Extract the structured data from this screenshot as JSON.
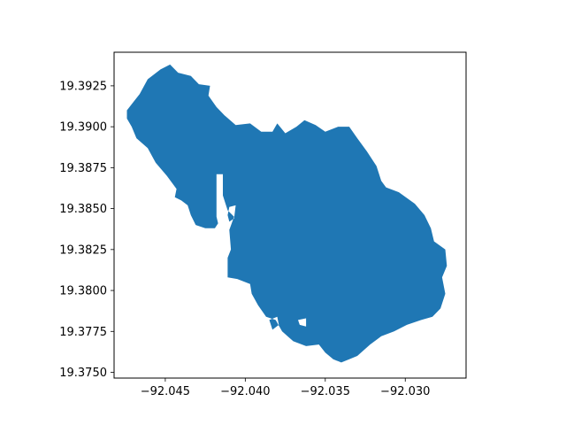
{
  "chart_data": {
    "type": "map",
    "title": "",
    "xlabel": "",
    "ylabel": "",
    "xlim": [
      -92.0482,
      -92.0262
    ],
    "ylim": [
      19.37465,
      19.39455
    ],
    "x_ticks": [
      {
        "value": -92.045,
        "label": "−92.045"
      },
      {
        "value": -92.04,
        "label": "−92.040"
      },
      {
        "value": -92.035,
        "label": "−92.035"
      },
      {
        "value": -92.03,
        "label": "−92.030"
      }
    ],
    "y_ticks": [
      {
        "value": 19.375,
        "label": "19.3750"
      },
      {
        "value": 19.3775,
        "label": "19.3775"
      },
      {
        "value": 19.38,
        "label": "19.3800"
      },
      {
        "value": 19.3825,
        "label": "19.3825"
      },
      {
        "value": 19.385,
        "label": "19.3850"
      },
      {
        "value": 19.3875,
        "label": "19.3875"
      },
      {
        "value": 19.39,
        "label": "19.3900"
      },
      {
        "value": 19.3925,
        "label": "19.3925"
      }
    ],
    "fill_color": "#1f77b4",
    "grid": false,
    "polygon": [
      [
        -92.0474,
        19.391
      ],
      [
        -92.047,
        19.3915
      ],
      [
        -92.0466,
        19.392
      ],
      [
        -92.0461,
        19.3929
      ],
      [
        -92.0457,
        19.3932
      ],
      [
        -92.0453,
        19.3935
      ],
      [
        -92.0447,
        19.3938
      ],
      [
        -92.0442,
        19.3933
      ],
      [
        -92.0434,
        19.3931
      ],
      [
        -92.0429,
        19.3926
      ],
      [
        -92.0422,
        19.3925
      ],
      [
        -92.0423,
        19.3919
      ],
      [
        -92.0418,
        19.3912
      ],
      [
        -92.0413,
        19.3907
      ],
      [
        -92.0406,
        19.3901
      ],
      [
        -92.0397,
        19.3902
      ],
      [
        -92.039,
        19.3897
      ],
      [
        -92.0383,
        19.3897
      ],
      [
        -92.038,
        19.3902
      ],
      [
        -92.0375,
        19.3896
      ],
      [
        -92.0368,
        19.39
      ],
      [
        -92.0363,
        19.3904
      ],
      [
        -92.0356,
        19.3901
      ],
      [
        -92.035,
        19.3897
      ],
      [
        -92.0342,
        19.39
      ],
      [
        -92.0335,
        19.39
      ],
      [
        -92.033,
        19.3893
      ],
      [
        -92.0324,
        19.3885
      ],
      [
        -92.0318,
        19.3876
      ],
      [
        -92.0315,
        19.3867
      ],
      [
        -92.0312,
        19.3863
      ],
      [
        -92.0304,
        19.386
      ],
      [
        -92.0294,
        19.3853
      ],
      [
        -92.0288,
        19.3846
      ],
      [
        -92.0284,
        19.3838
      ],
      [
        -92.0282,
        19.383
      ],
      [
        -92.0275,
        19.3825
      ],
      [
        -92.0274,
        19.3815
      ],
      [
        -92.0277,
        19.3808
      ],
      [
        -92.0275,
        19.3798
      ],
      [
        -92.0278,
        19.3789
      ],
      [
        -92.0283,
        19.3784
      ],
      [
        -92.029,
        19.3782
      ],
      [
        -92.0299,
        19.3779
      ],
      [
        -92.0307,
        19.3775
      ],
      [
        -92.0315,
        19.3772
      ],
      [
        -92.0322,
        19.3767
      ],
      [
        -92.033,
        19.376
      ],
      [
        -92.0335,
        19.3758
      ],
      [
        -92.034,
        19.3756
      ],
      [
        -92.0345,
        19.3758
      ],
      [
        -92.035,
        19.3762
      ],
      [
        -92.0354,
        19.3767
      ],
      [
        -92.0362,
        19.3766
      ],
      [
        -92.037,
        19.3769
      ],
      [
        -92.0377,
        19.3775
      ],
      [
        -92.0381,
        19.3782
      ],
      [
        -92.0387,
        19.3784
      ],
      [
        -92.0392,
        19.3791
      ],
      [
        -92.0396,
        19.3798
      ],
      [
        -92.0397,
        19.3804
      ],
      [
        -92.0405,
        19.3807
      ],
      [
        -92.0411,
        19.3808
      ],
      [
        -92.0411,
        19.382
      ],
      [
        -92.0409,
        19.3825
      ],
      [
        -92.041,
        19.3837
      ],
      [
        -92.0407,
        19.3845
      ],
      [
        -92.0411,
        19.3849
      ],
      [
        -92.0414,
        19.3858
      ],
      [
        -92.0414,
        19.3871
      ],
      [
        -92.0418,
        19.3871
      ],
      [
        -92.0418,
        19.3845
      ],
      [
        -92.0417,
        19.3841
      ],
      [
        -92.0419,
        19.3838
      ],
      [
        -92.0425,
        19.3838
      ],
      [
        -92.0431,
        19.384
      ],
      [
        -92.0434,
        19.3846
      ],
      [
        -92.0436,
        19.3852
      ],
      [
        -92.044,
        19.3855
      ],
      [
        -92.0444,
        19.3857
      ],
      [
        -92.0443,
        19.3862
      ],
      [
        -92.0449,
        19.387
      ],
      [
        -92.0456,
        19.3878
      ],
      [
        -92.0461,
        19.3887
      ],
      [
        -92.0468,
        19.3893
      ],
      [
        -92.0471,
        19.39
      ],
      [
        -92.0474,
        19.3905
      ]
    ],
    "holes": [
      [
        [
          -92.041,
          19.3842
        ],
        [
          -92.0407,
          19.3844
        ],
        [
          -92.0406,
          19.3852
        ],
        [
          -92.041,
          19.3851
        ],
        [
          -92.0411,
          19.3846
        ]
      ],
      [
        [
          -92.0383,
          19.3776
        ],
        [
          -92.0379,
          19.3779
        ],
        [
          -92.038,
          19.3784
        ],
        [
          -92.0385,
          19.3782
        ]
      ],
      [
        [
          -92.0366,
          19.3779
        ],
        [
          -92.0362,
          19.3778
        ],
        [
          -92.0362,
          19.3783
        ],
        [
          -92.0367,
          19.3782
        ]
      ]
    ]
  }
}
